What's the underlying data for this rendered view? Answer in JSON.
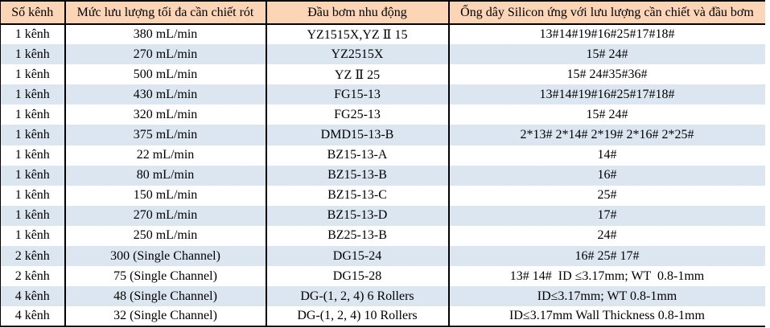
{
  "colors": {
    "header_bg": "#FBD5B5",
    "stripe_bg": "#DCE6F1",
    "row_bg": "#FFFFFF",
    "border": "#000000",
    "text": "#000000"
  },
  "table": {
    "columns": [
      "Số kênh",
      "Mức lưu lượng tối đa cần chiết rót",
      "Đầu bơm nhu động",
      "Ống dây Silicon ứng với lưu lượng cần chiết và đầu bơm"
    ],
    "rows": [
      [
        "1 kênh",
        "380 mL/min",
        "YZ1515X,YZ Ⅱ 15",
        "13#14#19#16#25#17#18#"
      ],
      [
        "1 kênh",
        "270 mL/min",
        "YZ2515X",
        "15# 24#"
      ],
      [
        "1 kênh",
        "500 mL/min",
        "YZ Ⅱ 25",
        "15# 24#35#36#"
      ],
      [
        "1 kênh",
        "430 mL/min",
        "FG15-13",
        "13#14#19#16#25#17#18#"
      ],
      [
        "1 kênh",
        "320 mL/min",
        "FG25-13",
        "15# 24#"
      ],
      [
        "1 kênh",
        "375 mL/min",
        "DMD15-13-B",
        "2*13# 2*14# 2*19# 2*16# 2*25#"
      ],
      [
        "1 kênh",
        "22 mL/min",
        "BZ15-13-A",
        "14#"
      ],
      [
        "1 kênh",
        "80 mL/min",
        "BZ15-13-B",
        "16#"
      ],
      [
        "1 kênh",
        "150 mL/min",
        "BZ15-13-C",
        "25#"
      ],
      [
        "1 kênh",
        "270 mL/min",
        "BZ15-13-D",
        "17#"
      ],
      [
        "1 kênh",
        "250 mL/min",
        "BZ25-13-B",
        "24#"
      ],
      [
        "2 kênh",
        "300 (Single Channel)",
        "DG15-24",
        "16# 25# 17#"
      ],
      [
        "2 kênh",
        "75 (Single Channel)",
        "DG15-28",
        "13# 14#  ID ≤3.17mm; WT  0.8-1mm"
      ],
      [
        "4 kênh",
        "48 (Single Channel)",
        "DG-(1, 2, 4) 6 Rollers",
        "ID≤3.17mm; WT 0.8-1mm"
      ],
      [
        "4 kênh",
        "32 (Single Channel)",
        "DG-(1, 2, 4) 10 Rollers",
        "ID≤3.17mm Wall Thickness 0.8-1mm"
      ]
    ]
  }
}
